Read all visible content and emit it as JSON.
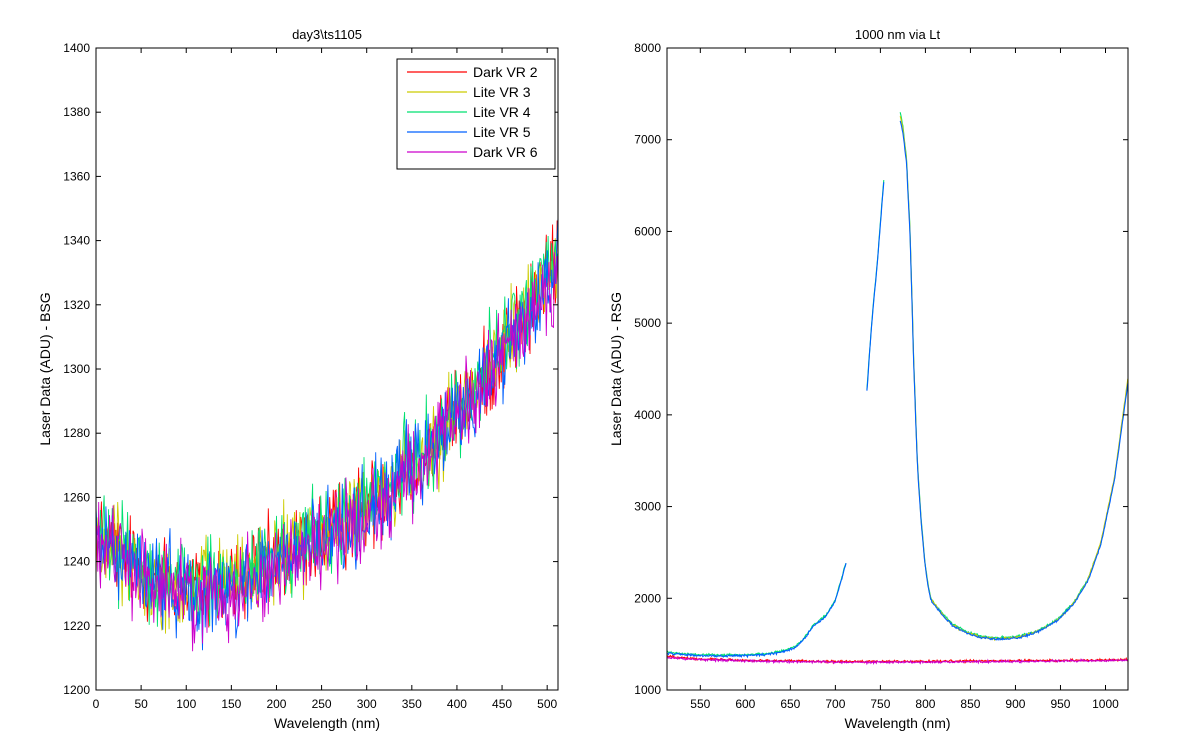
{
  "chart_data": [
    {
      "type": "line",
      "title": "day3\\ts1105",
      "xlabel": "Wavelength (nm)",
      "ylabel": "Laser Data (ADU) - BSG",
      "xlim": [
        0,
        512
      ],
      "ylim": [
        1200,
        1400
      ],
      "xticks": [
        0,
        50,
        100,
        150,
        200,
        250,
        300,
        350,
        400,
        450,
        500
      ],
      "yticks": [
        1200,
        1220,
        1240,
        1260,
        1280,
        1300,
        1320,
        1340,
        1360,
        1380,
        1400
      ],
      "grid": false,
      "legend": "top-right",
      "x": [
        0,
        25,
        50,
        75,
        100,
        125,
        150,
        175,
        200,
        225,
        250,
        275,
        300,
        325,
        350,
        375,
        400,
        425,
        450,
        475,
        500,
        512
      ],
      "series": [
        {
          "name": "Dark VR 2",
          "color": "#ff0000",
          "values": [
            1248,
            1243,
            1238,
            1235,
            1232,
            1231,
            1233,
            1236,
            1240,
            1244,
            1248,
            1252,
            1257,
            1263,
            1270,
            1277,
            1286,
            1295,
            1306,
            1316,
            1328,
            1335
          ]
        },
        {
          "name": "Lite VR 3",
          "color": "#cccc00",
          "values": [
            1247,
            1242,
            1237,
            1234,
            1232,
            1232,
            1234,
            1237,
            1241,
            1245,
            1249,
            1253,
            1258,
            1264,
            1271,
            1278,
            1287,
            1296,
            1307,
            1317,
            1329,
            1336
          ]
        },
        {
          "name": "Lite VR 4",
          "color": "#00e070",
          "values": [
            1249,
            1244,
            1239,
            1236,
            1233,
            1232,
            1234,
            1237,
            1241,
            1245,
            1249,
            1253,
            1258,
            1264,
            1271,
            1278,
            1287,
            1297,
            1308,
            1318,
            1330,
            1337
          ]
        },
        {
          "name": "Lite VR 5",
          "color": "#0060ff",
          "values": [
            1247,
            1242,
            1237,
            1234,
            1231,
            1230,
            1232,
            1235,
            1239,
            1243,
            1247,
            1251,
            1256,
            1262,
            1269,
            1276,
            1285,
            1294,
            1305,
            1315,
            1327,
            1334
          ]
        },
        {
          "name": "Dark VR 6",
          "color": "#cc00cc",
          "values": [
            1246,
            1241,
            1236,
            1233,
            1230,
            1229,
            1231,
            1234,
            1238,
            1242,
            1246,
            1250,
            1255,
            1261,
            1268,
            1275,
            1284,
            1293,
            1304,
            1314,
            1326,
            1333
          ]
        }
      ]
    },
    {
      "type": "line",
      "title": "1000 nm via Lt",
      "xlabel": "Wavelength (nm)",
      "ylabel": "Laser Data (ADU) - RSG",
      "xlim": [
        513,
        1025
      ],
      "ylim": [
        1000,
        8000
      ],
      "xticks": [
        550,
        600,
        650,
        700,
        750,
        800,
        850,
        900,
        950,
        1000
      ],
      "yticks": [
        1000,
        2000,
        3000,
        4000,
        5000,
        6000,
        7000,
        8000
      ],
      "grid": false,
      "series": [
        {
          "color": "#00e070",
          "segments": [
            {
              "x": [
                513,
                530,
                550,
                575,
                600,
                620,
                640,
                655,
                665,
                675,
                690,
                700,
                712
              ],
              "y": [
                1410,
                1395,
                1385,
                1380,
                1385,
                1395,
                1420,
                1470,
                1560,
                1700,
                1820,
                1980,
                2400
              ]
            },
            {
              "x": [
                735,
                738,
                742,
                746,
                750,
                754
              ],
              "y": [
                4270,
                4700,
                5200,
                5600,
                6100,
                6600
              ]
            },
            {
              "x": [
                772,
                775,
                779,
                783,
                787,
                791,
                795,
                798,
                800,
                803,
                806,
                812,
                820,
                830,
                845,
                860,
                875,
                890,
                905,
                920,
                935,
                950,
                965,
                980,
                995,
                1010,
                1025
              ],
              "y": [
                7300,
                7150,
                6800,
                6000,
                4600,
                3500,
                2900,
                2560,
                2350,
                2150,
                2000,
                1920,
                1820,
                1720,
                1640,
                1590,
                1570,
                1570,
                1590,
                1630,
                1700,
                1800,
                1960,
                2200,
                2600,
                3300,
                4380
              ]
            }
          ]
        },
        {
          "color": "#cccc00",
          "segments": [
            {
              "x": [
                772,
                775,
                779,
                783,
                787,
                791,
                795,
                798,
                800,
                803,
                806,
                812,
                820,
                830,
                845,
                860,
                875,
                890,
                905,
                920,
                935,
                950,
                965,
                980,
                995,
                1010,
                1025
              ],
              "y": [
                7260,
                7120,
                6780,
                5980,
                4580,
                3480,
                2880,
                2540,
                2340,
                2140,
                1990,
                1910,
                1810,
                1710,
                1630,
                1580,
                1560,
                1560,
                1580,
                1620,
                1690,
                1790,
                1950,
                2190,
                2620,
                3320,
                4400
              ]
            }
          ]
        },
        {
          "color": "#0060ff",
          "segments": [
            {
              "x": [
                513,
                530,
                550,
                575,
                600,
                620,
                640,
                655,
                665,
                675,
                690,
                700,
                712
              ],
              "y": [
                1400,
                1385,
                1375,
                1370,
                1375,
                1385,
                1410,
                1460,
                1550,
                1690,
                1810,
                1970,
                2390
              ]
            },
            {
              "x": [
                735,
                738,
                742,
                746,
                750,
                754
              ],
              "y": [
                4250,
                4680,
                5180,
                5580,
                6080,
                6580
              ]
            },
            {
              "x": [
                772,
                775,
                779,
                783,
                787,
                791,
                795,
                798,
                800,
                803,
                806,
                812,
                820,
                830,
                845,
                860,
                875,
                890,
                905,
                920,
                935,
                950,
                965,
                980,
                995,
                1010,
                1025
              ],
              "y": [
                7200,
                7080,
                6750,
                5950,
                4550,
                3460,
                2870,
                2530,
                2330,
                2130,
                1985,
                1905,
                1805,
                1705,
                1625,
                1575,
                1555,
                1555,
                1575,
                1615,
                1685,
                1785,
                1945,
                2180,
                2590,
                3290,
                4350
              ]
            }
          ]
        },
        {
          "color": "#ff0000",
          "segments": [
            {
              "x": [
                513,
                550,
                600,
                650,
                700,
                750,
                800,
                850,
                900,
                950,
                1000,
                1025
              ],
              "y": [
                1365,
                1340,
                1325,
                1318,
                1312,
                1310,
                1312,
                1315,
                1318,
                1322,
                1326,
                1330
              ]
            }
          ]
        },
        {
          "color": "#cc00cc",
          "segments": [
            {
              "x": [
                513,
                550,
                600,
                650,
                700,
                750,
                800,
                850,
                900,
                950,
                1000,
                1025
              ],
              "y": [
                1355,
                1332,
                1318,
                1310,
                1305,
                1303,
                1305,
                1308,
                1311,
                1315,
                1320,
                1324
              ]
            }
          ]
        }
      ]
    }
  ]
}
